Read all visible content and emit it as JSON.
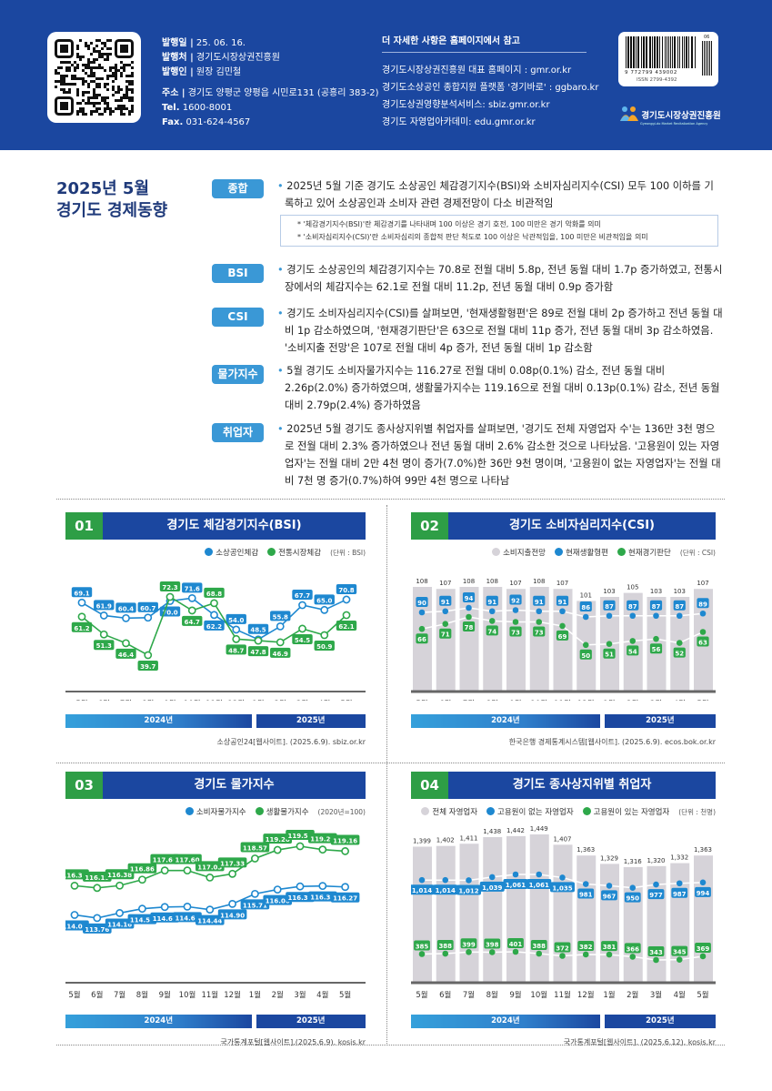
{
  "header": {
    "publish_date_label": "발행일 |",
    "publish_date": "25. 06. 16.",
    "publisher_label": "발행처 |",
    "publisher": "경기도시장상권진흥원",
    "issuer_label": "발행인 |",
    "issuer": "원장 김민철",
    "address_label": "주소 |",
    "address": "경기도 양평군 양평읍 시민로131 (공흥리 383-2)",
    "tel_label": "Tel.",
    "tel": "1600-8001",
    "fax_label": "Fax.",
    "fax": "031-624-4567",
    "more_title": "더 자세한 사항은 홈페이지에서 참고",
    "links": [
      "경기도시장상권진흥원 대표 홈페이지 : gmr.or.kr",
      "경기도소상공인 종합지원 플랫폼 '경기바로' : ggbaro.kr",
      "경기도상권영향분석서비스: sbiz.gmr.or.kr",
      "경기도 자영업아카데미: edu.gmr.or.kr"
    ],
    "barcode_number": "9 772799 439002",
    "barcode_addon": "06",
    "issn": "ISSN 2799-4392",
    "logo_text": "경기도시장상권진흥원",
    "logo_sub": "Gyeonggi-do Market Revitalization Agency",
    "bg_color": "#1b47a0"
  },
  "title": {
    "line1": "2025년 5월",
    "line2": "경기도 경제동향"
  },
  "sections": [
    {
      "tag": "종합",
      "text": "2025년 5월 기준 경기도 소상공인 체감경기지수(BSI)와 소비자심리지수(CSI) 모두 100 이하를 기록하고 있어 소상공인과 소비자 관련 경제전망이 다소 비관적임"
    },
    {
      "tag": "BSI",
      "text": "경기도 소상공인의 체감경기지수는 70.8로 전월 대비 5.8p, 전년 동월 대비 1.7p 증가하였고, 전통시장에서의 체감지수는 62.1로 전월 대비 11.2p, 전년 동월 대비 0.9p 증가함"
    },
    {
      "tag": "CSI",
      "text": "경기도 소비자심리지수(CSI)를 살펴보면, '현재생활형편'은 89로 전월 대비 2p 증가하고 전년 동월 대비 1p 감소하였으며, '현재경기판단'은 63으로 전월 대비 11p 증가, 전년 동월 대비 3p 감소하였음. '소비지출 전망'은 107로 전월 대비 4p 증가, 전년 동월 대비 1p 감소함"
    },
    {
      "tag": "물가지수",
      "text": "5월 경기도 소비자물가지수는 116.27로 전월 대비 0.08p(0.1%) 감소, 전년 동월 대비 2.26p(2.0%) 증가하였으며, 생활물가지수는 119.16으로 전월 대비 0.13p(0.1%) 감소, 전년 동월 대비 2.79p(2.4%) 증가하였음"
    },
    {
      "tag": "취업자",
      "text": "2025년 5월 경기도 종사상지위별 취업자를 살펴보면, '경기도 전체 자영업자 수'는 136만 3천 명으로 전월 대비 2.3% 증가하였으나 전년 동월 대비 2.6% 감소한 것으로 나타났음. '고용원이 있는 자영업자'는 전월 대비 2만 4천 명이 증가(7.0%)한 36만 9천 명이며, '고용원이 없는 자영업자'는 전월 대비 7천 명 증가(0.7%)하여 99만 4천 명으로 나타남"
    }
  ],
  "notes": [
    "* '체감경기지수(BSI)'란 체감경기를 나타내며 100 이상은 경기 호전, 100 미만은 경기 악화를 의미",
    "* '소비자심리지수(CSI)'란 소비자심리의 종합적 판단 척도로 100 이상은 낙관적임을, 100 미만은 비관적임을 의미"
  ],
  "months": [
    "5월",
    "6월",
    "7월",
    "8월",
    "9월",
    "10월",
    "11월",
    "12월",
    "1월",
    "2월",
    "3월",
    "4월",
    "5월"
  ],
  "years": [
    "2024년",
    "2025년"
  ],
  "colors": {
    "blue": "#1e88d0",
    "green": "#2ea84a",
    "gray": "#d6d3d9",
    "header": "#1b47a0",
    "tag": "#3a98d6"
  },
  "chart_data": [
    {
      "id": "01",
      "title": "경기도 체감경기지수(BSI)",
      "type": "line",
      "unit": "(단위 : BSI)",
      "source": "소상공인24[웹사이트]. (2025.6.9). sbiz.or.kr",
      "series": [
        {
          "name": "소상공인체감",
          "color": "#1e88d0",
          "values": [
            69.1,
            61.9,
            60.4,
            60.7,
            70.0,
            71.6,
            62.2,
            54.0,
            48.5,
            55.8,
            67.7,
            65.0,
            70.8
          ]
        },
        {
          "name": "전통시장체감",
          "color": "#2ea84a",
          "values": [
            61.2,
            51.3,
            46.4,
            39.7,
            72.3,
            64.7,
            68.8,
            48.7,
            47.8,
            46.9,
            54.5,
            50.9,
            62.1
          ]
        }
      ]
    },
    {
      "id": "02",
      "title": "경기도 소비자심리지수(CSI)",
      "type": "bar+line",
      "unit": "(단위 : CSI)",
      "source": "한국은행 경제통계시스템[웹사이트]. (2025.6.9). ecos.bok.or.kr",
      "series": [
        {
          "name": "소비지출전망",
          "color": "#d6d3d9",
          "values": [
            108,
            107,
            108,
            108,
            107,
            108,
            107,
            101,
            103,
            105,
            103,
            103,
            107
          ]
        },
        {
          "name": "현재생활형편",
          "color": "#1e88d0",
          "values": [
            90,
            91,
            94,
            91,
            92,
            91,
            91,
            86,
            87,
            87,
            87,
            87,
            89
          ]
        },
        {
          "name": "현재경기판단",
          "color": "#2ea84a",
          "values": [
            66,
            71,
            78,
            74,
            73,
            73,
            69,
            50,
            51,
            54,
            56,
            52,
            63
          ]
        }
      ]
    },
    {
      "id": "03",
      "title": "경기도 물가지수",
      "type": "line",
      "unit": "(2020년=100)",
      "source": "국가통계포털[웹사이트].(2025.6.9). kosis.kr",
      "series": [
        {
          "name": "소비자물가지수",
          "color": "#1e88d0",
          "values": [
            114.01,
            113.76,
            114.16,
            114.51,
            114.65,
            114.68,
            114.44,
            114.9,
            115.71,
            116.06,
            116.31,
            116.35,
            116.27
          ]
        },
        {
          "name": "생활물가지수",
          "color": "#2ea84a",
          "values": [
            116.37,
            116.19,
            116.38,
            116.86,
            117.6,
            117.6,
            117.03,
            117.33,
            118.57,
            119.26,
            119.56,
            119.29,
            119.16
          ]
        }
      ]
    },
    {
      "id": "04",
      "title": "경기도 종사상지위별 취업자",
      "type": "bar+line",
      "unit": "(단위 : 천명)",
      "source": "국가통계포털[웹사이트]. (2025.6.12). kosis.kr",
      "series": [
        {
          "name": "전체 자영업자",
          "color": "#d6d3d9",
          "values": [
            1399,
            1402,
            1411,
            1438,
            1442,
            1449,
            1407,
            1363,
            1329,
            1316,
            1320,
            1332,
            1363
          ]
        },
        {
          "name": "고용원이 없는 자영업자",
          "color": "#1e88d0",
          "values": [
            1014,
            1014,
            1012,
            1039,
            1061,
            1061,
            1035,
            981,
            967,
            950,
            977,
            987,
            994
          ]
        },
        {
          "name": "고용원이 있는 자영업자",
          "color": "#2ea84a",
          "values": [
            385,
            388,
            399,
            398,
            401,
            388,
            372,
            382,
            381,
            366,
            343,
            345,
            369
          ]
        }
      ]
    }
  ]
}
